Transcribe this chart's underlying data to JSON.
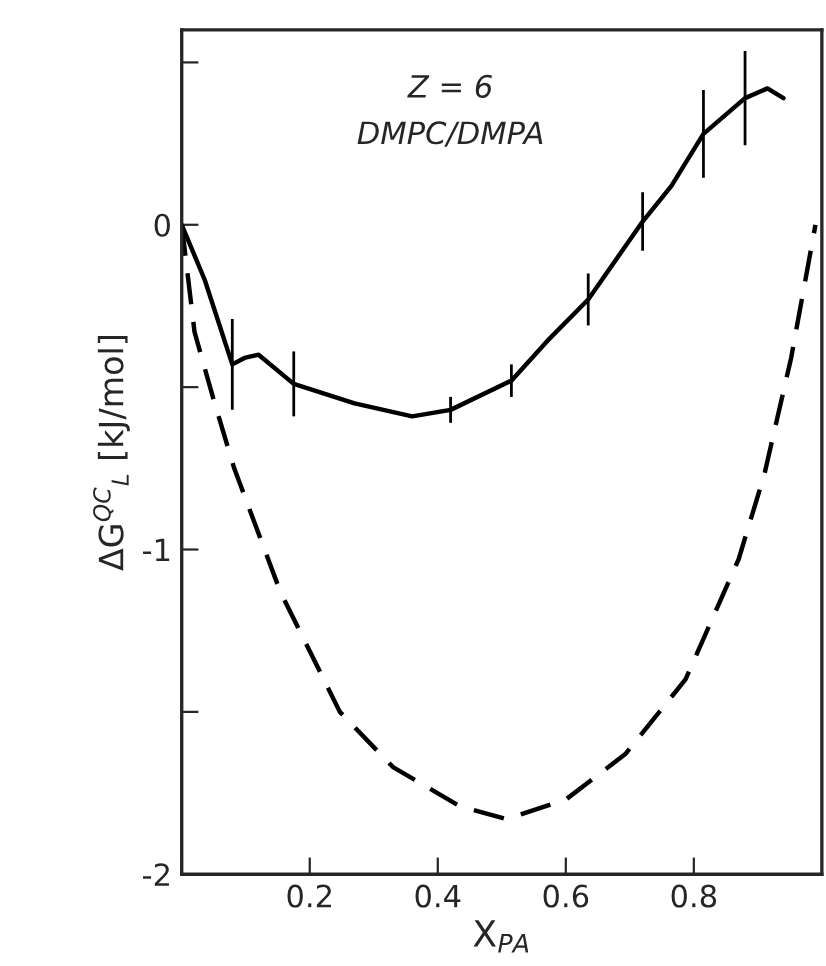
{
  "chart_data": {
    "type": "line",
    "xlabel": "X$_{PA}$",
    "ylabel": "ΔG$^{QC}$$_{L}$ [kJ/mol]",
    "annotations": [
      "Z = 6",
      "DMPC/DMPA"
    ],
    "xlim": [
      0,
      1
    ],
    "ylim": [
      -2,
      0.6
    ],
    "xticks": [
      {
        "value": 0,
        "label": null
      },
      0.2,
      0.4,
      0.6,
      0.8
    ],
    "yticks": [
      -2,
      {
        "value": -1.5,
        "label": null
      },
      -1,
      {
        "value": -0.5,
        "label": null
      },
      0,
      {
        "value": 0.5,
        "label": null
      }
    ],
    "grid": false,
    "legend": false,
    "series": [
      {
        "color": "#000000",
        "line_style": "solid",
        "x": [
          0,
          0.036,
          0.079,
          0.098,
          0.12,
          0.175,
          0.27,
          0.36,
          0.42,
          0.515,
          0.57,
          0.635,
          0.72,
          0.765,
          0.815,
          0.88,
          0.915,
          0.94
        ],
        "values": [
          0,
          -0.17,
          -0.43,
          -0.41,
          -0.4,
          -0.49,
          -0.55,
          -0.59,
          -0.57,
          -0.48,
          -0.36,
          -0.23,
          0.01,
          0.12,
          0.28,
          0.39,
          0.42,
          0.39
        ],
        "errors": [
          null,
          null,
          0.14,
          null,
          null,
          0.1,
          null,
          null,
          0.04,
          0.05,
          null,
          0.08,
          0.09,
          null,
          0.135,
          0.145,
          null,
          null
        ]
      },
      {
        "color": "#000000",
        "line_style": "dashed",
        "x": [
          0,
          0.02,
          0.05,
          0.082,
          0.154,
          0.247,
          0.33,
          0.434,
          0.507,
          0.6,
          0.693,
          0.787,
          0.87,
          0.91,
          0.952,
          0.99
        ],
        "values": [
          0,
          -0.33,
          -0.54,
          -0.75,
          -1.13,
          -1.5,
          -1.67,
          -1.79,
          -1.83,
          -1.77,
          -1.63,
          -1.4,
          -1.03,
          -0.77,
          -0.41,
          0
        ]
      }
    ]
  }
}
